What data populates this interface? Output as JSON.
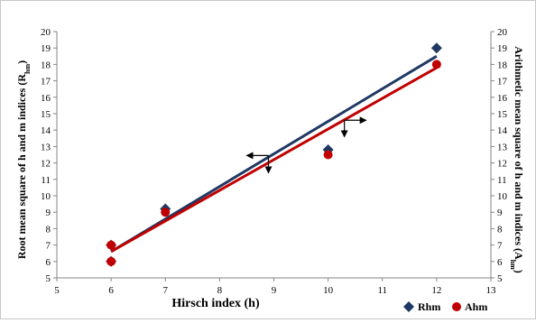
{
  "chart_data": {
    "type": "scatter",
    "xlabel": "Hirsch index (h)",
    "ylabel_left": "Root mean square of h and m indices (Rhm)",
    "ylabel_left_main": "Root mean square of h and m indices (R",
    "ylabel_left_sub": "hm",
    "ylabel_left_close": ")",
    "ylabel_right": "Arithmetic mean square of h and m indices (Ahm)",
    "ylabel_right_main": "Arithmetic mean square of h and m indices (A",
    "ylabel_right_sub": "hm",
    "ylabel_right_close": ")",
    "xlim": [
      5,
      13
    ],
    "ylim": [
      5,
      20
    ],
    "x_ticks": [
      5,
      6,
      7,
      8,
      9,
      10,
      11,
      12,
      13
    ],
    "y_ticks": [
      5,
      6,
      7,
      8,
      9,
      10,
      11,
      12,
      13,
      14,
      15,
      16,
      17,
      18,
      19,
      20
    ],
    "grid": false,
    "legend_position": "bottom-right",
    "series": [
      {
        "name": "Rhm",
        "color": "#1f3864",
        "marker": "diamond",
        "axis": "left",
        "points": [
          [
            6,
            6.0
          ],
          [
            6,
            7.0
          ],
          [
            7,
            9.2
          ],
          [
            10,
            12.8
          ],
          [
            12,
            19.0
          ]
        ],
        "trendline": [
          [
            6,
            6.6
          ],
          [
            12,
            18.5
          ]
        ]
      },
      {
        "name": "Ahm",
        "color": "#c00000",
        "marker": "circle",
        "axis": "right",
        "points": [
          [
            6,
            6.0
          ],
          [
            6,
            7.0
          ],
          [
            7,
            9.0
          ],
          [
            10,
            12.5
          ],
          [
            12,
            18.0
          ]
        ],
        "trendline": [
          [
            6,
            6.6
          ],
          [
            12,
            17.8
          ]
        ]
      }
    ],
    "annotations": [
      {
        "type": "axis-arrow",
        "points_to": "left",
        "at": [
          8.9,
          12.45
        ],
        "stem": [
          8.9,
          11.4
        ]
      },
      {
        "type": "axis-arrow",
        "points_to": "right",
        "at": [
          10.3,
          14.6
        ],
        "stem": [
          10.3,
          13.6
        ]
      }
    ]
  }
}
